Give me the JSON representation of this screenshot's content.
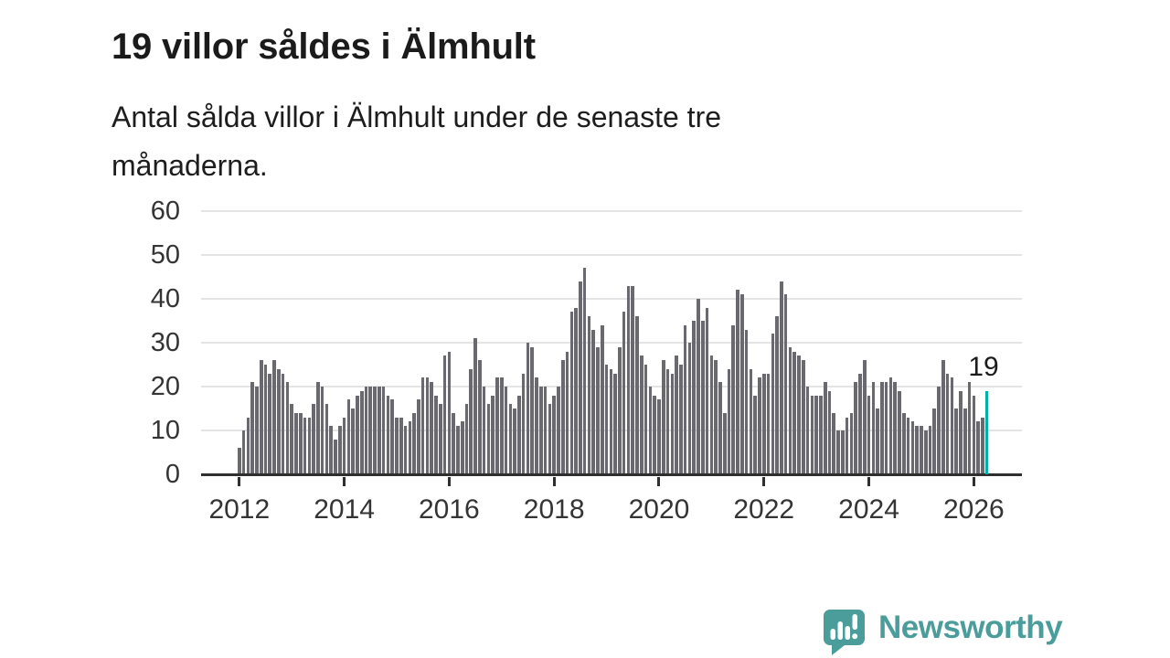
{
  "header": {
    "title": "19 villor såldes i Älmhult",
    "subtitle_lines": [
      "Antal sålda villor i Älmhult under de senaste tre",
      "månaderna."
    ]
  },
  "annotation": {
    "latest_value_label": "19"
  },
  "footer": {
    "brand": "Newsworthy",
    "logo_icon": "speech-bubble-bar-chart-icon"
  },
  "colors": {
    "bar": "#69696f",
    "highlight": "#00b0a6",
    "grid": "#e4e4e4",
    "axis": "#2f2f2f",
    "tick_text": "#343434",
    "title_text": "#1b1b1b",
    "logo_teal": "#4a9d9a"
  },
  "chart_data": {
    "type": "bar",
    "title": "19 villor såldes i Älmhult",
    "subtitle": "Antal sålda villor i Älmhult under de senaste tre månaderna.",
    "xlabel": "",
    "ylabel": "",
    "x_unit": "month",
    "x_range": [
      "2012-01",
      "2026-04"
    ],
    "x_tick_labels": [
      "2012",
      "2014",
      "2016",
      "2018",
      "2020",
      "2022",
      "2024",
      "2026"
    ],
    "x_tick_every_n_bars": 24,
    "y_ticks": [
      0,
      10,
      20,
      30,
      40,
      50,
      60
    ],
    "ylim": [
      0,
      60
    ],
    "grid": true,
    "legend": false,
    "highlight_last": true,
    "highlight_last_value": 19,
    "values": [
      6,
      10,
      13,
      21,
      20,
      26,
      25,
      23,
      26,
      24,
      23,
      21,
      16,
      14,
      14,
      13,
      13,
      16,
      21,
      20,
      16,
      11,
      8,
      11,
      13,
      17,
      15,
      18,
      19,
      20,
      20,
      20,
      20,
      20,
      18,
      17,
      13,
      13,
      11,
      12,
      14,
      17,
      22,
      22,
      21,
      18,
      16,
      27,
      28,
      14,
      11,
      12,
      16,
      24,
      31,
      26,
      20,
      16,
      18,
      22,
      22,
      20,
      16,
      15,
      18,
      23,
      30,
      29,
      22,
      20,
      20,
      16,
      18,
      20,
      26,
      28,
      37,
      38,
      44,
      47,
      36,
      33,
      29,
      34,
      25,
      24,
      23,
      29,
      37,
      43,
      43,
      36,
      27,
      25,
      20,
      18,
      17,
      26,
      24,
      23,
      27,
      25,
      34,
      30,
      35,
      40,
      35,
      38,
      27,
      26,
      21,
      14,
      24,
      34,
      42,
      41,
      33,
      24,
      18,
      22,
      23,
      23,
      32,
      36,
      44,
      41,
      29,
      28,
      27,
      26,
      20,
      18,
      18,
      18,
      21,
      19,
      14,
      10,
      10,
      13,
      14,
      21,
      23,
      26,
      18,
      21,
      15,
      21,
      21,
      22,
      21,
      19,
      14,
      13,
      12,
      11,
      11,
      10,
      11,
      15,
      20,
      26,
      23,
      22,
      15,
      19,
      15,
      21,
      18,
      12,
      13,
      19
    ]
  }
}
